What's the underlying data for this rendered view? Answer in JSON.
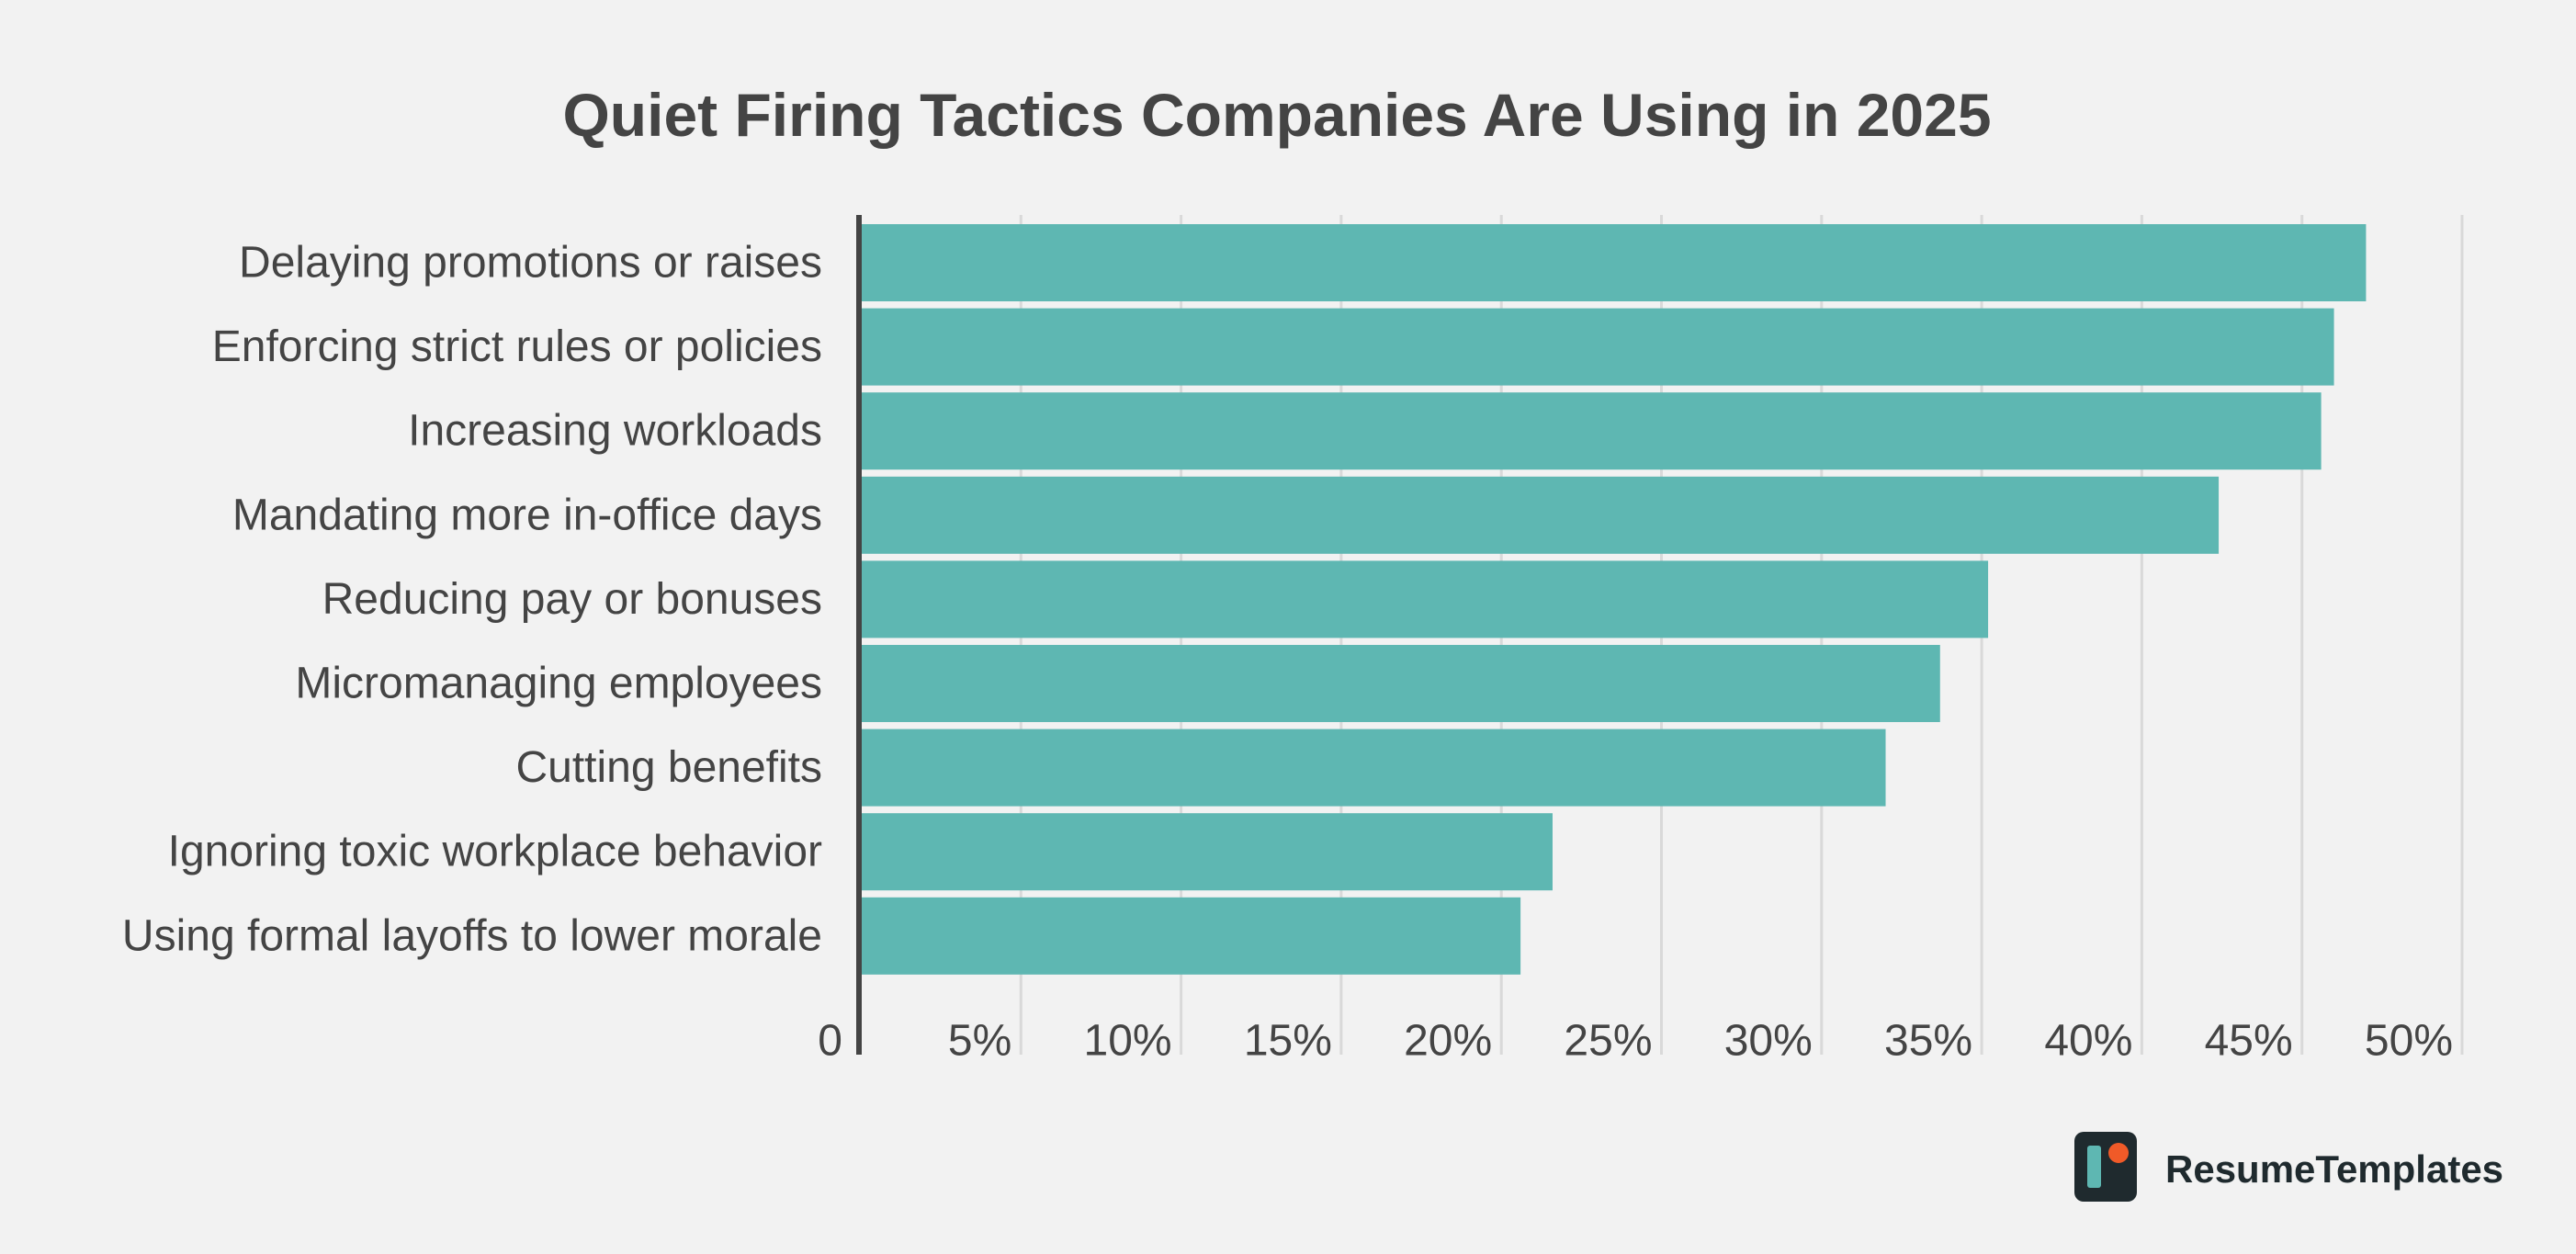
{
  "brand": {
    "name": "ResumeTemplates",
    "logo_icon": "resume-templates-logo-icon",
    "logo_colors": {
      "tile": "#1f2a2e",
      "bar": "#5eb7b2",
      "dot": "#f05a28"
    }
  },
  "colors": {
    "background": "#f2f2f2",
    "bar": "#5eb7b2",
    "text": "#444444",
    "grid": "#d9d9d9",
    "axis": "#444444"
  },
  "chart_data": {
    "type": "bar",
    "orientation": "horizontal",
    "title": "Quiet Firing Tactics Companies Are Using in 2025",
    "xlabel": "",
    "ylabel": "",
    "categories": [
      "Delaying promotions or raises",
      "Enforcing strict rules or policies",
      "Increasing workloads",
      "Mandating more in-office days",
      "Reducing pay or bonuses",
      "Micromanaging employees",
      "Cutting benefits",
      "Ignoring toxic workplace behavior",
      "Using formal layoffs to lower morale"
    ],
    "values": [
      47,
      46,
      45.6,
      42.4,
      35.2,
      33.7,
      32,
      21.6,
      20.6
    ],
    "xlim": [
      0,
      50
    ],
    "xticks": [
      0,
      5,
      10,
      15,
      20,
      25,
      30,
      35,
      40,
      45,
      50
    ],
    "xtick_labels": [
      "0",
      "5%",
      "10%",
      "15%",
      "20%",
      "25%",
      "30%",
      "35%",
      "40%",
      "45%",
      "50%"
    ],
    "grid": true,
    "legend": "none"
  }
}
